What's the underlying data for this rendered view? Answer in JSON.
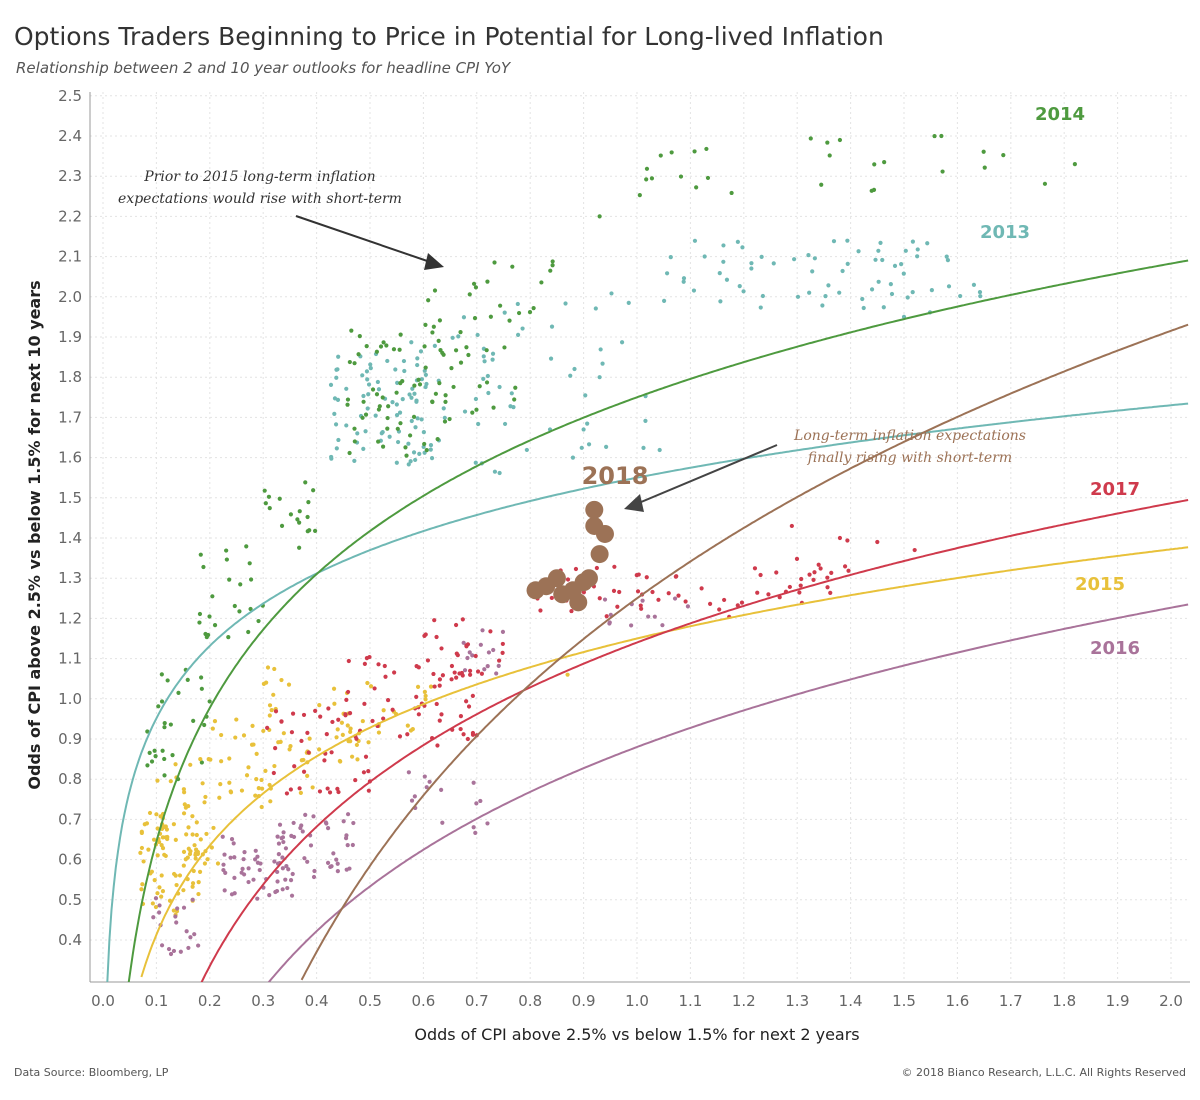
{
  "header": {
    "title": "Options Traders Beginning to Price in Potential for Long-lived Inflation",
    "subtitle": "Relationship between 2 and 10 year outlooks for headline CPI YoY"
  },
  "footer": {
    "source": "Data Source: Bloomberg, LP",
    "copyright": "© 2018 Bianco Research, L.L.C. All Rights Reserved"
  },
  "chart_data": {
    "type": "scatter",
    "title": "Options Traders Beginning to Price in Potential for Long-lived Inflation",
    "subtitle": "Relationship between 2 and 10 year outlooks for headline CPI YoY",
    "xlabel": "Odds of CPI above 2.5% vs below 1.5% for next 2 years",
    "ylabel": "Odds of CPI above 2.5% vs below 1.5% for next 10 years",
    "xlim": [
      -0.05,
      2.05
    ],
    "ylim": [
      0.3,
      2.52
    ],
    "xticks": [
      "0.0",
      "0.1",
      "0.2",
      "0.3",
      "0.4",
      "0.5",
      "0.6",
      "0.7",
      "0.8",
      "0.9",
      "1.0",
      "1.1",
      "1.2",
      "1.3",
      "1.4",
      "1.5",
      "1.6",
      "1.7",
      "1.8",
      "1.9",
      "2.0"
    ],
    "yticks": [
      "0.4",
      "0.5",
      "0.6",
      "0.7",
      "0.8",
      "0.9",
      "1.0",
      "1.1",
      "1.2",
      "1.3",
      "1.4",
      "1.5",
      "1.6",
      "1.7",
      "1.8",
      "1.9",
      "2.0",
      "2.1",
      "2.2",
      "2.3",
      "2.4",
      "2.5"
    ],
    "grid": true,
    "series": [
      {
        "name": "2013",
        "color": "#6fb8b4",
        "trend": {
          "a": 1.55,
          "b": 0.26
        },
        "clusters": [
          {
            "x": [
              0.42,
              0.62
            ],
            "y": [
              1.58,
              1.86
            ],
            "n": 70,
            "seed": 11
          },
          {
            "x": [
              0.55,
              0.75
            ],
            "y": [
              1.55,
              1.95
            ],
            "n": 40,
            "seed": 12
          },
          {
            "x": [
              0.75,
              1.05
            ],
            "y": [
              1.58,
              2.02
            ],
            "n": 30,
            "seed": 13
          },
          {
            "x": [
              1.05,
              1.55
            ],
            "y": [
              1.96,
              2.14
            ],
            "n": 55,
            "seed": 14
          },
          {
            "x": [
              1.45,
              1.65
            ],
            "y": [
              2.0,
              2.12
            ],
            "n": 12,
            "seed": 15
          }
        ],
        "points": [
          [
            1.5,
            1.95
          ],
          [
            0.88,
            1.6
          ],
          [
            0.9,
            1.67
          ],
          [
            0.93,
            1.8
          ],
          [
            1.58,
            2.1
          ]
        ]
      },
      {
        "name": "2014",
        "color": "#4e9a3f",
        "trend": {
          "a": 1.75,
          "b": 0.48
        },
        "clusters": [
          {
            "x": [
              0.08,
              0.2
            ],
            "y": [
              0.8,
              1.08
            ],
            "n": 28,
            "seed": 21
          },
          {
            "x": [
              0.18,
              0.3
            ],
            "y": [
              1.15,
              1.38
            ],
            "n": 24,
            "seed": 22
          },
          {
            "x": [
              0.3,
              0.4
            ],
            "y": [
              1.35,
              1.55
            ],
            "n": 18,
            "seed": 23
          },
          {
            "x": [
              0.45,
              0.65
            ],
            "y": [
              1.6,
              1.95
            ],
            "n": 60,
            "seed": 24
          },
          {
            "x": [
              0.6,
              0.85
            ],
            "y": [
              1.7,
              2.1
            ],
            "n": 40,
            "seed": 25
          },
          {
            "x": [
              1.0,
              1.25
            ],
            "y": [
              2.24,
              2.38
            ],
            "n": 12,
            "seed": 26
          },
          {
            "x": [
              1.3,
              1.8
            ],
            "y": [
              2.26,
              2.4
            ],
            "n": 14,
            "seed": 27
          }
        ],
        "points": [
          [
            0.93,
            2.2
          ],
          [
            1.82,
            2.33
          ],
          [
            1.38,
            2.39
          ],
          [
            1.57,
            2.4
          ]
        ]
      },
      {
        "name": "2015",
        "color": "#e8c13a",
        "trend": {
          "a": 1.15,
          "b": 0.32
        },
        "clusters": [
          {
            "x": [
              0.07,
              0.18
            ],
            "y": [
              0.48,
              0.72
            ],
            "n": 70,
            "seed": 31
          },
          {
            "x": [
              0.1,
              0.22
            ],
            "y": [
              0.6,
              0.85
            ],
            "n": 40,
            "seed": 32
          },
          {
            "x": [
              0.18,
              0.32
            ],
            "y": [
              0.75,
              0.95
            ],
            "n": 35,
            "seed": 33
          },
          {
            "x": [
              0.3,
              0.48
            ],
            "y": [
              0.82,
              1.08
            ],
            "n": 45,
            "seed": 34
          },
          {
            "x": [
              0.45,
              0.62
            ],
            "y": [
              0.9,
              1.05
            ],
            "n": 25,
            "seed": 35
          }
        ],
        "points": [
          [
            0.87,
            1.06
          ]
        ]
      },
      {
        "name": "2016",
        "color": "#a9739a",
        "trend": {
          "a": 0.88,
          "b": 0.5
        },
        "clusters": [
          {
            "x": [
              0.08,
              0.18
            ],
            "y": [
              0.36,
              0.52
            ],
            "n": 20,
            "seed": 41
          },
          {
            "x": [
              0.22,
              0.36
            ],
            "y": [
              0.5,
              0.66
            ],
            "n": 50,
            "seed": 42
          },
          {
            "x": [
              0.33,
              0.47
            ],
            "y": [
              0.55,
              0.72
            ],
            "n": 40,
            "seed": 43
          },
          {
            "x": [
              0.55,
              0.72
            ],
            "y": [
              0.68,
              0.85
            ],
            "n": 14,
            "seed": 44
          },
          {
            "x": [
              0.65,
              0.75
            ],
            "y": [
              1.06,
              1.18
            ],
            "n": 14,
            "seed": 45
          },
          {
            "x": [
              0.92,
              1.1
            ],
            "y": [
              1.18,
              1.25
            ],
            "n": 12,
            "seed": 46
          }
        ],
        "points": [
          [
            0.72,
            0.69
          ]
        ]
      },
      {
        "name": "2017",
        "color": "#cf3a4c",
        "trend": {
          "a": 1.14,
          "b": 0.5
        },
        "clusters": [
          {
            "x": [
              0.3,
              0.5
            ],
            "y": [
              0.75,
              0.98
            ],
            "n": 40,
            "seed": 51
          },
          {
            "x": [
              0.45,
              0.7
            ],
            "y": [
              0.9,
              1.12
            ],
            "n": 55,
            "seed": 52
          },
          {
            "x": [
              0.6,
              0.75
            ],
            "y": [
              1.05,
              1.2
            ],
            "n": 25,
            "seed": 53
          },
          {
            "x": [
              0.78,
              1.0
            ],
            "y": [
              1.2,
              1.33
            ],
            "n": 25,
            "seed": 54
          },
          {
            "x": [
              1.0,
              1.2
            ],
            "y": [
              1.2,
              1.32
            ],
            "n": 20,
            "seed": 55
          },
          {
            "x": [
              1.2,
              1.4
            ],
            "y": [
              1.25,
              1.4
            ],
            "n": 25,
            "seed": 56
          }
        ],
        "points": [
          [
            1.29,
            1.43
          ],
          [
            1.45,
            1.39
          ],
          [
            1.52,
            1.37
          ],
          [
            1.38,
            1.4
          ]
        ]
      },
      {
        "name": "2018",
        "color": "#9c7256",
        "trend": {
          "a": 1.25,
          "b": 0.96
        },
        "points": [
          [
            0.92,
            1.47
          ],
          [
            0.92,
            1.43
          ],
          [
            0.94,
            1.41
          ],
          [
            0.93,
            1.36
          ],
          [
            0.81,
            1.27
          ],
          [
            0.83,
            1.28
          ],
          [
            0.85,
            1.3
          ],
          [
            0.86,
            1.26
          ],
          [
            0.88,
            1.27
          ],
          [
            0.89,
            1.24
          ],
          [
            0.9,
            1.29
          ],
          [
            0.91,
            1.3
          ]
        ]
      }
    ],
    "annotations": [
      {
        "text": [
          "Prior to 2015 long-term inflation",
          "expectations would rise with short-term"
        ],
        "color": "#333333"
      },
      {
        "text": [
          "Long-term inflation expectations",
          "finally rising with short-term"
        ],
        "color": "#9c7256"
      }
    ],
    "big_label": "2018"
  }
}
